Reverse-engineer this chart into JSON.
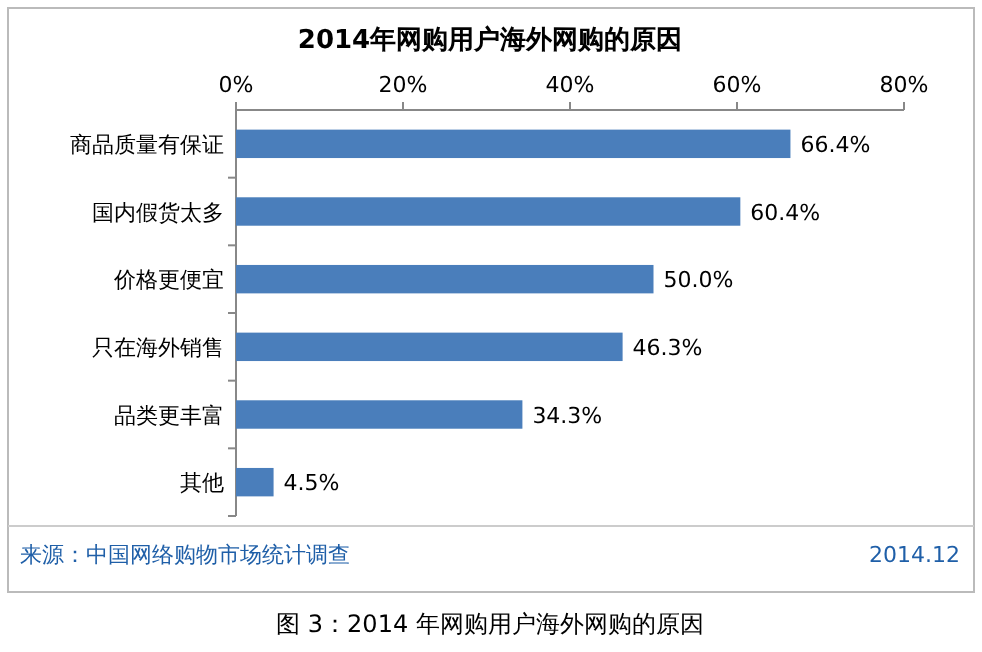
{
  "chart_data": {
    "type": "bar",
    "orientation": "horizontal",
    "title": "2014年网购用户海外网购的原因",
    "categories": [
      "商品质量有保证",
      "国内假货太多",
      "价格更便宜",
      "只在海外销售",
      "品类更丰富",
      "其他"
    ],
    "values": [
      66.4,
      60.4,
      50.0,
      46.3,
      34.3,
      4.5
    ],
    "value_labels": [
      "66.4%",
      "60.4%",
      "50.0%",
      "46.3%",
      "34.3%",
      "4.5%"
    ],
    "color": "#4a7ebb",
    "xlim": [
      0,
      80
    ],
    "xticks": [
      {
        "value": 0,
        "label": "0%"
      },
      {
        "value": 20,
        "label": "20%"
      },
      {
        "value": 40,
        "label": "40%"
      },
      {
        "value": 60,
        "label": "60%"
      },
      {
        "value": 80,
        "label": "80%"
      }
    ],
    "annotations": [
      "来源：中国网络购物市场统计调查",
      "2014.12",
      "图 3：2014 年网购用户海外网购的原因"
    ]
  }
}
